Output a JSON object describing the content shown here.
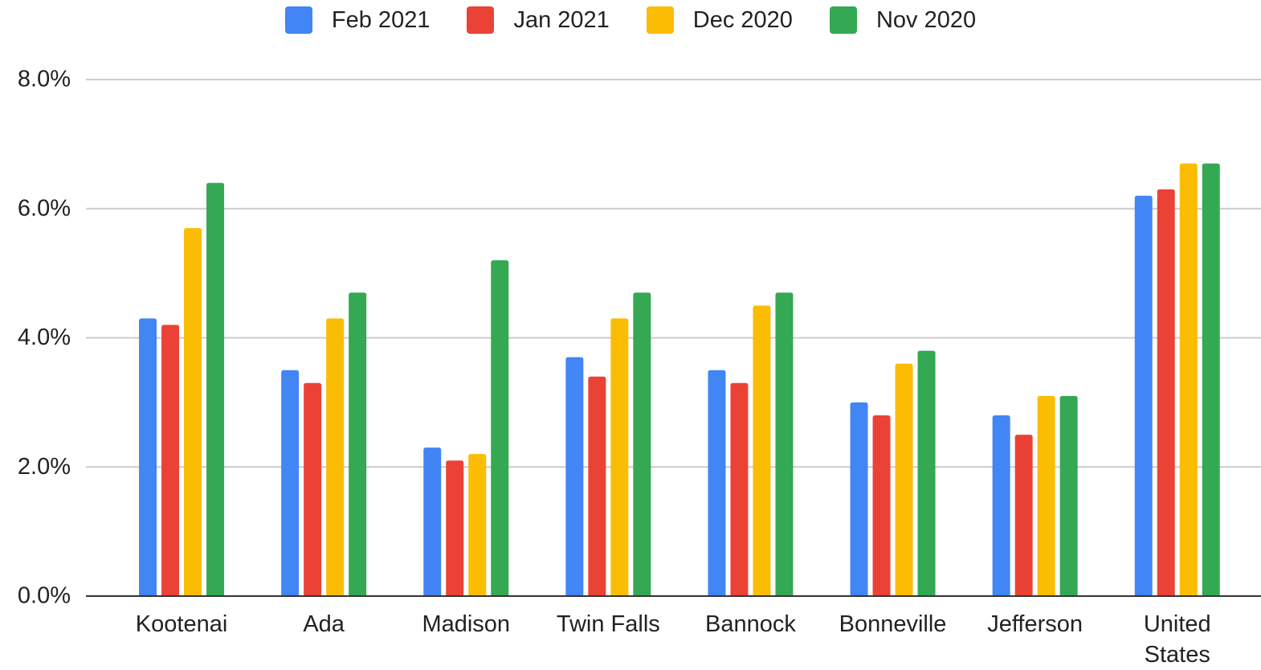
{
  "chart_data": {
    "type": "bar",
    "categories": [
      "Kootenai",
      "Ada",
      "Madison",
      "Twin Falls",
      "Bannock",
      "Bonneville",
      "Jefferson",
      "United States"
    ],
    "series": [
      {
        "name": "Feb 2021",
        "color": "#4285f4",
        "values": [
          4.3,
          3.5,
          2.3,
          3.7,
          3.5,
          3.0,
          2.8,
          6.2
        ]
      },
      {
        "name": "Jan 2021",
        "color": "#ea4335",
        "values": [
          4.2,
          3.3,
          2.1,
          3.4,
          3.3,
          2.8,
          2.5,
          6.3
        ]
      },
      {
        "name": "Dec 2020",
        "color": "#fbbc04",
        "values": [
          5.7,
          4.3,
          2.2,
          4.3,
          4.5,
          3.6,
          3.1,
          6.7
        ]
      },
      {
        "name": "Nov 2020",
        "color": "#34a853",
        "values": [
          6.4,
          4.7,
          5.2,
          4.7,
          4.7,
          3.8,
          3.1,
          6.7
        ]
      }
    ],
    "ylim": [
      0,
      8
    ],
    "yticks": [
      {
        "value": 0,
        "label": "0.0%"
      },
      {
        "value": 2,
        "label": "2.0%"
      },
      {
        "value": 4,
        "label": "4.0%"
      },
      {
        "value": 6,
        "label": "6.0%"
      },
      {
        "value": 8,
        "label": "8.0%"
      }
    ],
    "grid": true,
    "legend": "top"
  }
}
